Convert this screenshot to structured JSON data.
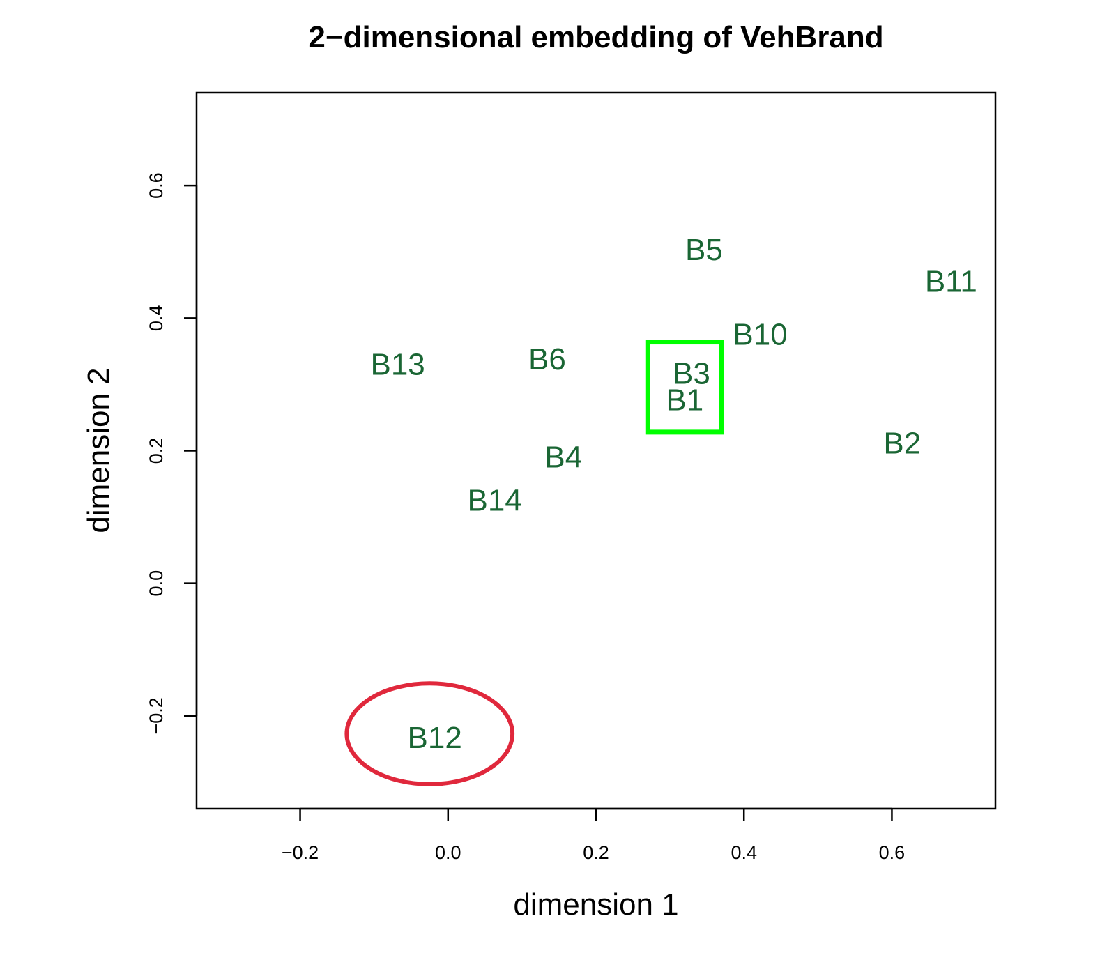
{
  "chart_data": {
    "type": "scatter",
    "title": "2−dimensional embedding of VehBrand",
    "xlabel": "dimension 1",
    "ylabel": "dimension 2",
    "xlim": [
      -0.34,
      0.74
    ],
    "ylim": [
      -0.34,
      0.74
    ],
    "x_ticks": [
      {
        "value": -0.2,
        "label": "−0.2"
      },
      {
        "value": 0.0,
        "label": "0.0"
      },
      {
        "value": 0.2,
        "label": "0.2"
      },
      {
        "value": 0.4,
        "label": "0.4"
      },
      {
        "value": 0.6,
        "label": "0.6"
      }
    ],
    "y_ticks": [
      {
        "value": -0.2,
        "label": "−0.2"
      },
      {
        "value": 0.0,
        "label": "0.0"
      },
      {
        "value": 0.2,
        "label": "0.2"
      },
      {
        "value": 0.4,
        "label": "0.4"
      },
      {
        "value": 0.6,
        "label": "0.6"
      }
    ],
    "grid": false,
    "label_color": "#1a6634",
    "points": [
      {
        "label": "B5",
        "x": 0.346,
        "y": 0.503
      },
      {
        "label": "B11",
        "x": 0.68,
        "y": 0.455
      },
      {
        "label": "B10",
        "x": 0.422,
        "y": 0.375
      },
      {
        "label": "B13",
        "x": -0.068,
        "y": 0.33
      },
      {
        "label": "B6",
        "x": 0.134,
        "y": 0.338
      },
      {
        "label": "B3",
        "x": 0.329,
        "y": 0.316
      },
      {
        "label": "B1",
        "x": 0.32,
        "y": 0.276
      },
      {
        "label": "B2",
        "x": 0.614,
        "y": 0.211
      },
      {
        "label": "B4",
        "x": 0.156,
        "y": 0.19
      },
      {
        "label": "B14",
        "x": 0.063,
        "y": 0.125
      },
      {
        "label": "B12",
        "x": -0.018,
        "y": -0.233
      }
    ],
    "annotations": [
      {
        "shape": "rectangle",
        "color": "#00ff00",
        "x0": 0.27,
        "x1": 0.37,
        "y0": 0.228,
        "y1": 0.364,
        "encloses": [
          "B3",
          "B1"
        ]
      },
      {
        "shape": "ellipse",
        "color": "#e0283c",
        "cx": -0.025,
        "cy": -0.227,
        "rx": 0.112,
        "ry": 0.076,
        "encloses": [
          "B12"
        ]
      }
    ]
  }
}
